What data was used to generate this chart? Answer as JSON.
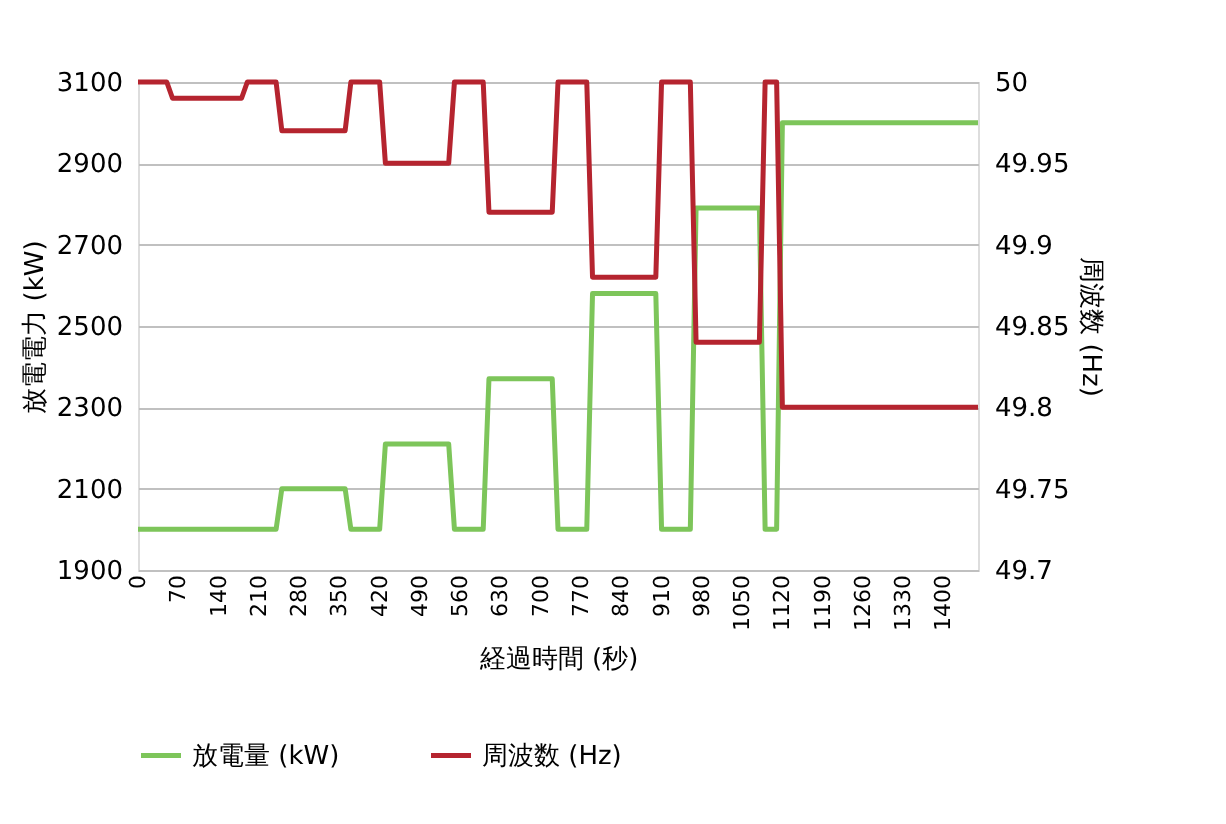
{
  "chart_data": {
    "type": "line",
    "xlabel": "経過時間 (秒)",
    "ylabel": "放電電力 (kW)",
    "y2label": "周波数 (Hz)",
    "xlim": [
      0,
      1460
    ],
    "xticks": [
      0,
      70,
      140,
      210,
      280,
      350,
      420,
      490,
      560,
      630,
      700,
      770,
      840,
      910,
      980,
      1050,
      1120,
      1190,
      1260,
      1330,
      1400
    ],
    "ylim": [
      1900,
      3100
    ],
    "yticks": [
      1900,
      2100,
      2300,
      2500,
      2700,
      2900,
      3100
    ],
    "y2lim": [
      49.7,
      50
    ],
    "y2ticks": [
      49.7,
      49.75,
      49.8,
      49.85,
      49.9,
      49.95,
      50
    ],
    "grid": "y",
    "legend": "bottom",
    "series": [
      {
        "name": "放電量 (kW)",
        "color": "#7dc55a",
        "x": [
          0,
          240,
          250,
          360,
          370,
          420,
          430,
          540,
          550,
          600,
          610,
          720,
          730,
          780,
          790,
          900,
          910,
          960,
          970,
          1080,
          1090,
          1110,
          1120,
          1460
        ],
        "values": [
          2000,
          2000,
          2100,
          2100,
          2000,
          2000,
          2210,
          2210,
          2000,
          2000,
          2370,
          2370,
          2000,
          2000,
          2580,
          2580,
          2000,
          2000,
          2790,
          2790,
          2000,
          2000,
          3000,
          3000
        ]
      },
      {
        "name": "周波数 (Hz)",
        "color": "#b5242f",
        "axis": "y2",
        "x": [
          0,
          50,
          60,
          180,
          190,
          240,
          250,
          360,
          370,
          420,
          430,
          540,
          550,
          600,
          610,
          720,
          730,
          780,
          790,
          900,
          910,
          960,
          970,
          1080,
          1090,
          1110,
          1120,
          1460
        ],
        "values": [
          50,
          50,
          49.99,
          49.99,
          50,
          50,
          49.97,
          49.97,
          50,
          50,
          49.95,
          49.95,
          50,
          50,
          49.92,
          49.92,
          50,
          50,
          49.88,
          49.88,
          50,
          50,
          49.84,
          49.84,
          50,
          50,
          49.8,
          49.8
        ]
      }
    ]
  }
}
